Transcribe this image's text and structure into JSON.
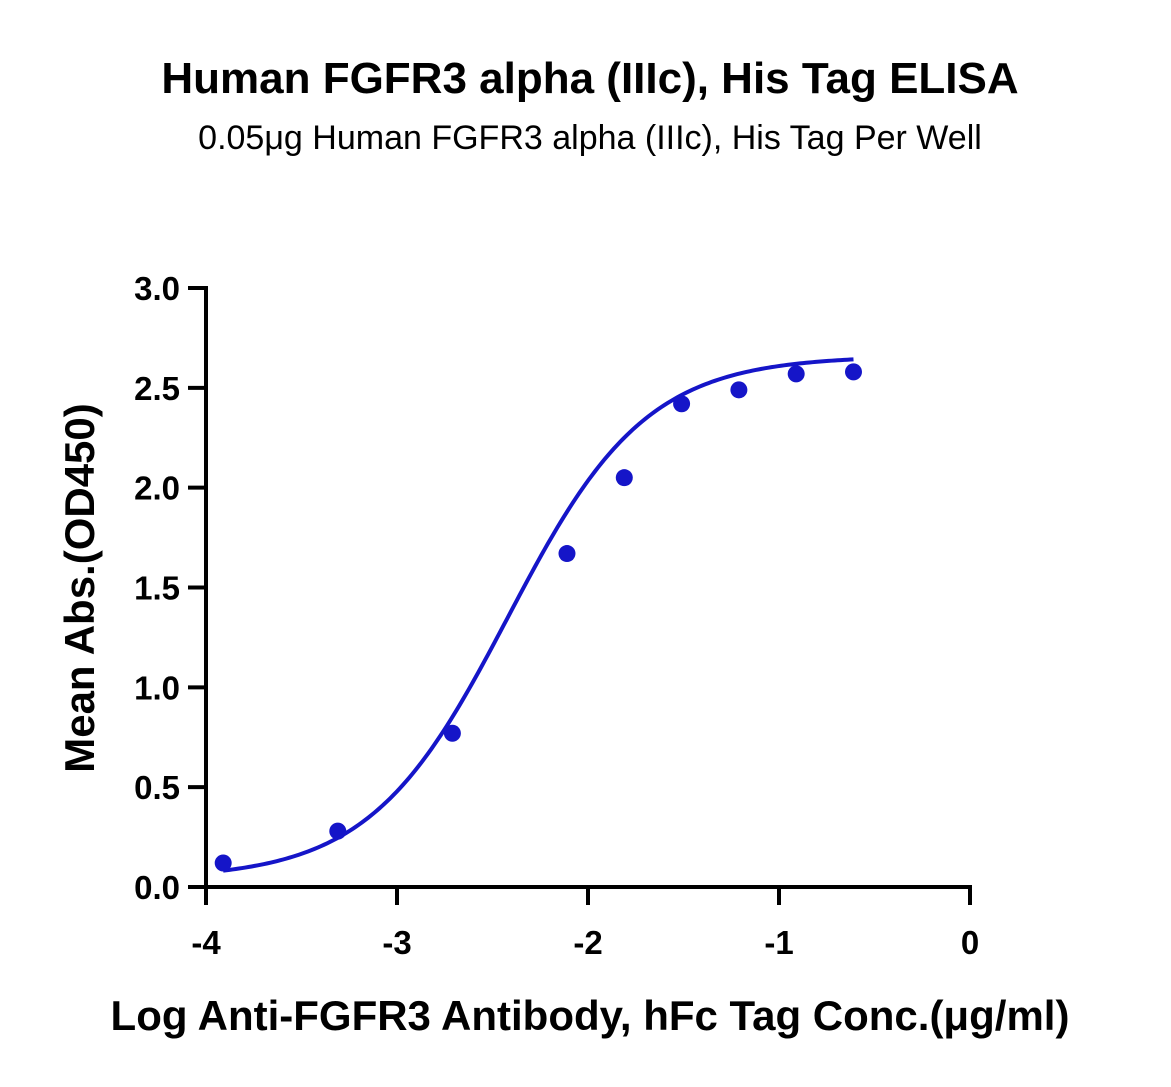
{
  "chart_data": {
    "type": "scatter",
    "title": "Human FGFR3 alpha (IIIc), His Tag ELISA",
    "subtitle": "0.05μg Human FGFR3 alpha (IIIc), His Tag Per Well",
    "xlabel": "Log Anti-FGFR3 Antibody, hFc Tag Conc.(μg/ml)",
    "ylabel": "Mean Abs.(OD450)",
    "xlim": [
      -4,
      0
    ],
    "ylim": [
      0,
      3.0
    ],
    "x_ticks": [
      "-4",
      "-3",
      "-2",
      "-1",
      "0"
    ],
    "y_ticks": [
      "0.0",
      "0.5",
      "1.0",
      "1.5",
      "2.0",
      "2.5",
      "3.0"
    ],
    "grid": false,
    "series": [
      {
        "x": [
          -3.91,
          -3.31,
          -2.71,
          -2.11,
          -1.81,
          -1.51,
          -1.21,
          -0.91,
          -0.61
        ],
        "y": [
          0.12,
          0.28,
          0.77,
          1.67,
          2.05,
          2.42,
          2.49,
          2.57,
          2.58
        ],
        "color": "#1515c8",
        "fit": "four-parameter logistic curve"
      }
    ]
  }
}
